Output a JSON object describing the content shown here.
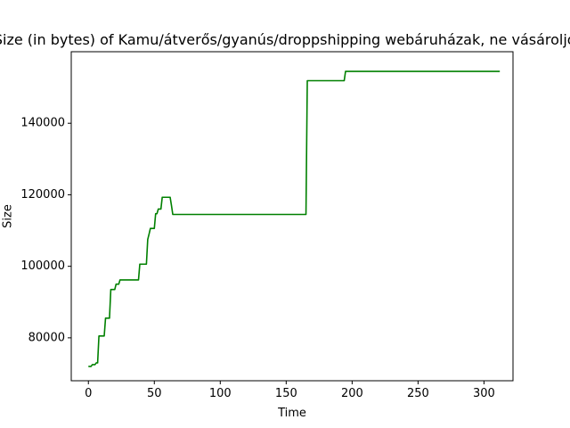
{
  "chart_data": {
    "type": "line",
    "title": "Size (in bytes) of Kamu/átverős/gyanús/droppshipping webáruházak, ne vásároljon!",
    "xlabel": "Time",
    "ylabel": "Size",
    "xlim": [
      -13,
      322
    ],
    "ylim": [
      68000,
      160000
    ],
    "xticks": [
      0,
      50,
      100,
      150,
      200,
      250,
      300
    ],
    "xtick_labels": [
      "0",
      "50",
      "100",
      "150",
      "200",
      "250",
      "300"
    ],
    "yticks": [
      80000,
      100000,
      120000,
      140000
    ],
    "ytick_labels": [
      "80000",
      "100000",
      "120000",
      "140000"
    ],
    "grid": false,
    "legend": "none",
    "series": [
      {
        "color": "#008000",
        "x": [
          0,
          2,
          3,
          5,
          6,
          7,
          8,
          12,
          13,
          16,
          17,
          20,
          21,
          23,
          24,
          38,
          39,
          44,
          45,
          46,
          47,
          50,
          51,
          52,
          53,
          55,
          56,
          60,
          62,
          63,
          64,
          165,
          166,
          194,
          195,
          312
        ],
        "y": [
          72000,
          72000,
          72500,
          72500,
          73000,
          73000,
          80500,
          80500,
          85500,
          85500,
          93500,
          93500,
          95000,
          95000,
          96200,
          96200,
          100600,
          100600,
          107500,
          109000,
          110600,
          110600,
          114700,
          114700,
          116000,
          116000,
          119300,
          119300,
          119300,
          117000,
          114500,
          114500,
          151900,
          151900,
          154500,
          154500
        ]
      }
    ]
  }
}
